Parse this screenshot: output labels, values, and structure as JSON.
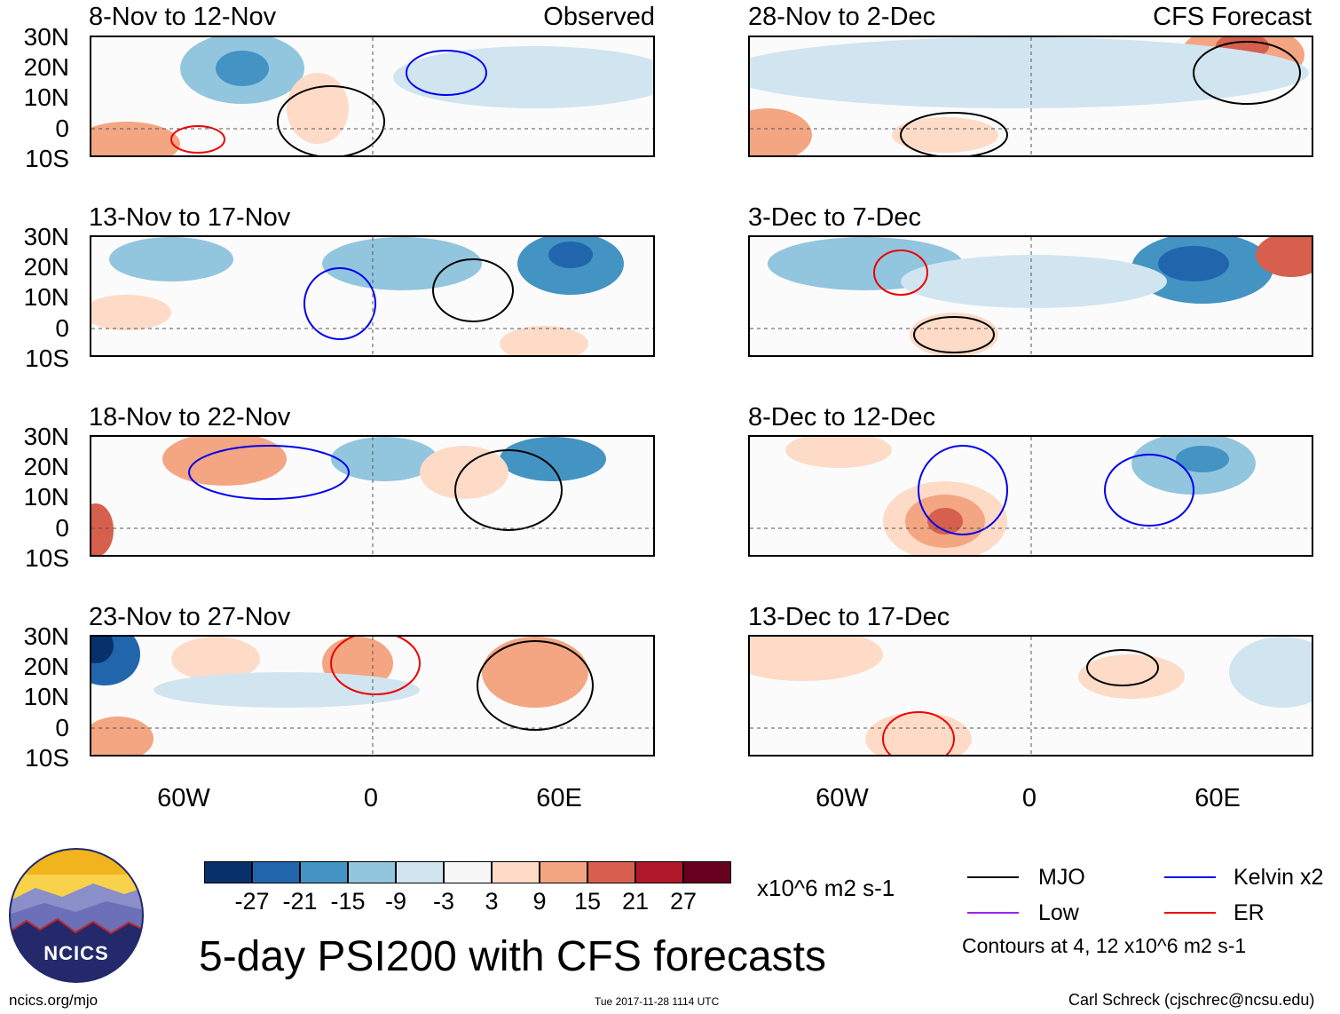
{
  "columns": {
    "left_label": "Observed",
    "right_label": "CFS Forecast"
  },
  "panels": {
    "left": [
      "8-Nov to 12-Nov",
      "13-Nov to 17-Nov",
      "18-Nov to 22-Nov",
      "23-Nov to 27-Nov"
    ],
    "right": [
      "28-Nov to 2-Dec",
      "3-Dec to 7-Dec",
      "8-Dec to 12-Dec",
      "13-Dec to 17-Dec"
    ]
  },
  "lat_labels": [
    "30N",
    "20N",
    "10N",
    "0",
    "10S"
  ],
  "lon_labels": [
    "60W",
    "0",
    "60E"
  ],
  "colorbar": {
    "labels": [
      "-27",
      "-21",
      "-15",
      "-9",
      "-3",
      "3",
      "9",
      "15",
      "21",
      "27"
    ],
    "colors": [
      "#08306b",
      "#2166ac",
      "#4393c3",
      "#92c5de",
      "#d1e5f0",
      "#f7f7f7",
      "#fddbc7",
      "#f4a582",
      "#d6604d",
      "#b2182b",
      "#67001f"
    ],
    "units": "x10^6 m2 s-1"
  },
  "legend": {
    "items": [
      {
        "label": "MJO",
        "color": "#000000"
      },
      {
        "label": "Kelvin x2",
        "color": "#0000ee"
      },
      {
        "label": "Low",
        "color": "#a020f0"
      },
      {
        "label": "ER",
        "color": "#ee0000"
      }
    ],
    "note": "Contours at 4, 12 x10^6 m2 s-1"
  },
  "title": "5-day PSI200 with CFS forecasts",
  "logo_text": "NCICS",
  "footer": {
    "left": "ncics.org/mjo",
    "center": "Tue 2017-11-28 1114 UTC",
    "right": "Carl Schreck (cjschrec@ncsu.edu)"
  }
}
